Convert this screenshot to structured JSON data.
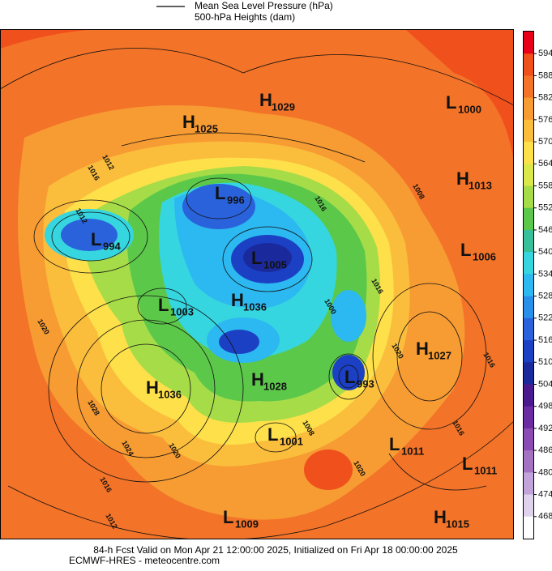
{
  "legend": {
    "lines": [
      "Mean Sea Level Pressure (hPa)",
      "500-hPa Heights (dam)"
    ]
  },
  "colorbar": {
    "ticks": [
      594,
      588,
      582,
      576,
      570,
      564,
      558,
      552,
      546,
      540,
      534,
      528,
      522,
      516,
      510,
      504,
      498,
      492,
      486,
      480,
      474,
      468
    ],
    "colors": [
      "#e8001a",
      "#f0501c",
      "#f37328",
      "#f79b33",
      "#fbbd3c",
      "#fde04a",
      "#dbe84a",
      "#a6dc48",
      "#5cc84a",
      "#38c09a",
      "#36d6e0",
      "#2cb8f0",
      "#2890ea",
      "#2a62dc",
      "#1c40c4",
      "#1a2a9c",
      "#4a1a8e",
      "#6a2ca0",
      "#8a4cb2",
      "#a472c2",
      "#c2a4da",
      "#ded2ec",
      "#ffffff"
    ]
  },
  "centers": [
    {
      "letter": "H",
      "value": 1029
    },
    {
      "letter": "H",
      "value": 1025
    },
    {
      "letter": "L",
      "value": 1000
    },
    {
      "letter": "H",
      "value": 1013
    },
    {
      "letter": "L",
      "value": 996
    },
    {
      "letter": "L",
      "value": 994
    },
    {
      "letter": "L",
      "value": 1005
    },
    {
      "letter": "L",
      "value": 1006
    },
    {
      "letter": "L",
      "value": 1003
    },
    {
      "letter": "H",
      "value": 1036
    },
    {
      "letter": "H",
      "value": 1027
    },
    {
      "letter": "L",
      "value": 993
    },
    {
      "letter": "H",
      "value": 1036
    },
    {
      "letter": "H",
      "value": 1028
    },
    {
      "letter": "L",
      "value": 1001
    },
    {
      "letter": "L",
      "value": 1011
    },
    {
      "letter": "L",
      "value": 1011
    },
    {
      "letter": "L",
      "value": 1009
    },
    {
      "letter": "H",
      "value": 1015
    }
  ],
  "contour_labels": [
    1016,
    1012,
    1012,
    1016,
    1020,
    1028,
    1024,
    1020,
    1016,
    1012,
    1008,
    1016,
    1020,
    1000,
    1020,
    1016,
    1016,
    1008
  ],
  "footer": {
    "lines": [
      "84-h Fcst Valid on Mon Apr 21 12:00:00 2025, Initialized on Fri Apr 18 00:00:00 2025",
      "ECMWF-HRES  - meteocentre.com"
    ]
  }
}
